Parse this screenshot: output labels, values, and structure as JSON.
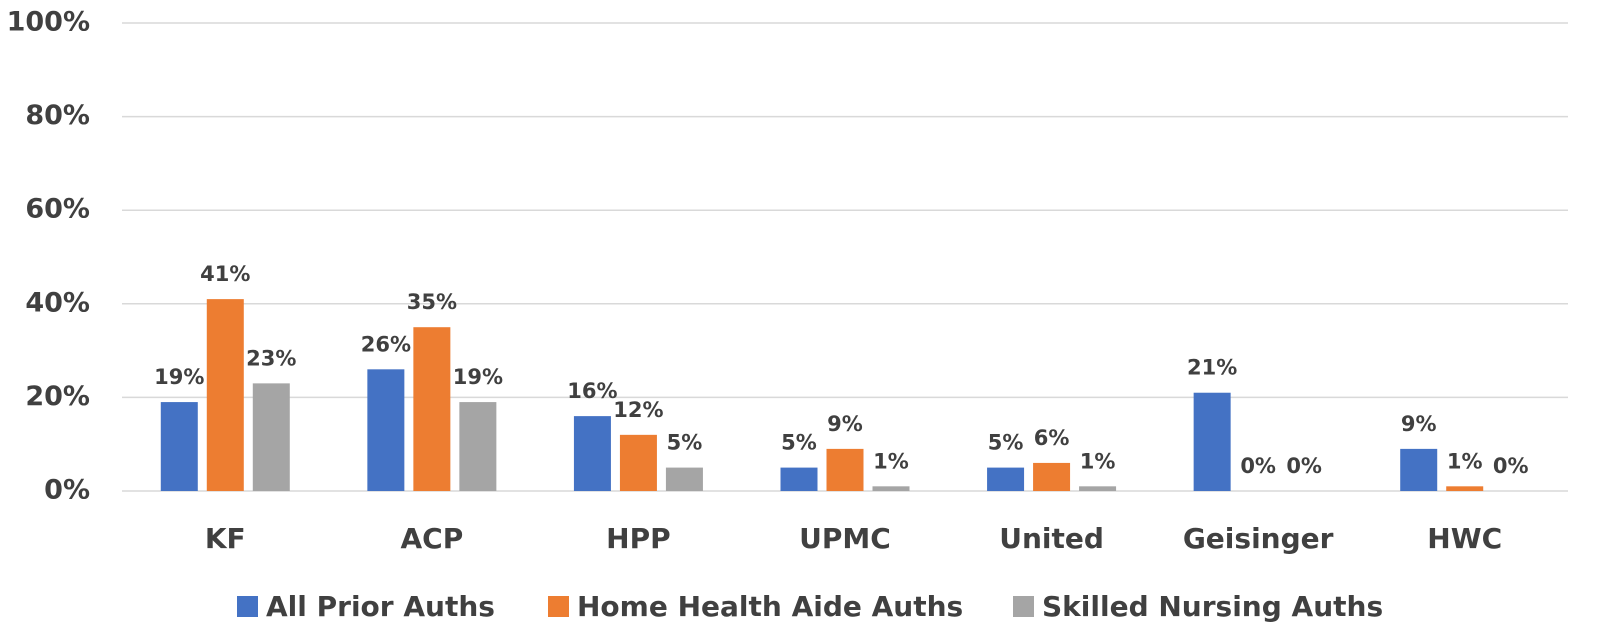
{
  "chart_data": {
    "type": "bar",
    "categories": [
      "KF",
      "ACP",
      "HPP",
      "UPMC",
      "United",
      "Geisinger",
      "HWC"
    ],
    "series": [
      {
        "name": "All Prior Auths",
        "color": "#4472c4",
        "values": [
          19,
          26,
          16,
          5,
          5,
          21,
          9
        ],
        "value_labels": [
          "19%",
          "26%",
          "16%",
          "5%",
          "5%",
          "21%",
          "9%"
        ]
      },
      {
        "name": "Home Health Aide Auths",
        "color": "#ed7d31",
        "values": [
          41,
          35,
          12,
          9,
          6,
          0,
          1
        ],
        "value_labels": [
          "41%",
          "35%",
          "12%",
          "9%",
          "6%",
          "0%",
          "1%"
        ]
      },
      {
        "name": "Skilled Nursing Auths",
        "color": "#a5a5a5",
        "values": [
          23,
          19,
          5,
          1,
          1,
          0,
          0
        ],
        "value_labels": [
          "23%",
          "19%",
          "5%",
          "1%",
          "1%",
          "0%",
          "0%"
        ]
      }
    ],
    "ylim": [
      0,
      100
    ],
    "yticks": [
      {
        "value": 0,
        "label": "0%"
      },
      {
        "value": 20,
        "label": "20%"
      },
      {
        "value": 40,
        "label": "40%"
      },
      {
        "value": 60,
        "label": "60%"
      },
      {
        "value": 80,
        "label": "80%"
      },
      {
        "value": 100,
        "label": "100%"
      }
    ],
    "grid": true,
    "legend": "bottom"
  }
}
